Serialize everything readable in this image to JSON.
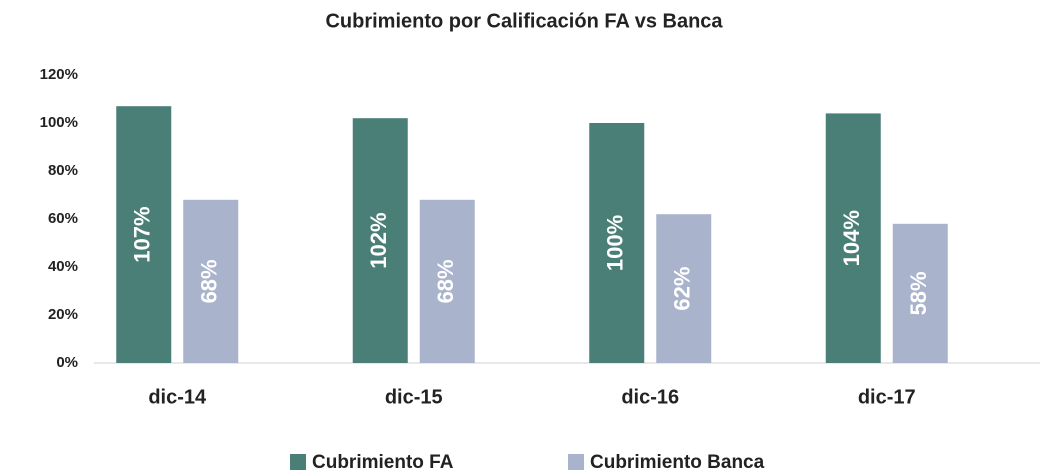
{
  "chart_data": {
    "type": "bar",
    "title": "Cubrimiento por Calificación FA vs Banca",
    "categories": [
      "dic-14",
      "dic-15",
      "dic-16",
      "dic-17"
    ],
    "series": [
      {
        "name": "Cubrimiento FA",
        "color": "#4a7f78",
        "values": [
          107,
          102,
          100,
          104
        ],
        "value_labels": [
          "107%",
          "102%",
          "100%",
          "104%"
        ]
      },
      {
        "name": "Cubrimiento Banca",
        "color": "#a9b4cc",
        "values": [
          68,
          68,
          62,
          58
        ],
        "value_labels": [
          "68%",
          "68%",
          "62%",
          "58%"
        ]
      }
    ],
    "ylim": [
      0,
      120
    ],
    "yticks": [
      {
        "value": 0,
        "label": "0%"
      },
      {
        "value": 20,
        "label": "20%"
      },
      {
        "value": 40,
        "label": "40%"
      },
      {
        "value": 60,
        "label": "60%"
      },
      {
        "value": 80,
        "label": "80%"
      },
      {
        "value": 100,
        "label": "100%"
      },
      {
        "value": 120,
        "label": "120%"
      }
    ],
    "grid": false,
    "legend": "bottom"
  }
}
